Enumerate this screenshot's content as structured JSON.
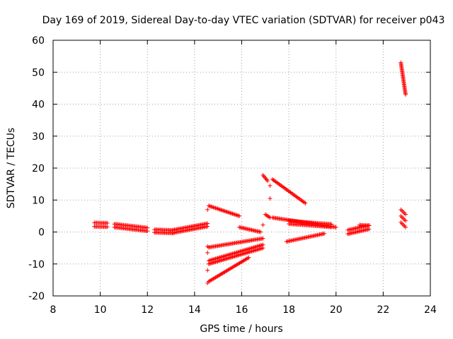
{
  "chart_data": {
    "type": "scatter",
    "title": "Day 169 of 2019, Sidereal Day-to-day VTEC variation (SDTVAR) for receiver p043",
    "xlabel": "GPS time / hours",
    "ylabel": "SDTVAR / TECUs",
    "xlim": [
      8,
      24
    ],
    "ylim": [
      -20,
      60
    ],
    "xticks": [
      8,
      10,
      12,
      14,
      16,
      18,
      20,
      22,
      24
    ],
    "yticks": [
      -20,
      -10,
      0,
      10,
      20,
      30,
      40,
      50,
      60
    ],
    "grid": true,
    "marker": "+",
    "color": "#ff0000",
    "segments": [
      {
        "x": [
          9.75,
          10.3
        ],
        "y": [
          2.3,
          2.2
        ],
        "band": 1.2
      },
      {
        "x": [
          10.6,
          12.0
        ],
        "y": [
          2.0,
          0.8
        ],
        "band": 1.0
      },
      {
        "x": [
          12.3,
          13.1
        ],
        "y": [
          0.3,
          0.1
        ],
        "band": 0.9
      },
      {
        "x": [
          13.1,
          14.55
        ],
        "y": [
          0.2,
          2.2
        ],
        "band": 0.9
      },
      {
        "x": [
          14.6,
          15.9
        ],
        "y": [
          8.2,
          5.0
        ],
        "band": 0.5
      },
      {
        "x": [
          14.6,
          16.9
        ],
        "y": [
          -4.8,
          -2.0
        ],
        "band": 0.8
      },
      {
        "x": [
          14.6,
          16.9
        ],
        "y": [
          -9.5,
          -4.5
        ],
        "band": 1.0
      },
      {
        "x": [
          14.6,
          16.3
        ],
        "y": [
          -15.5,
          -8.0
        ],
        "band": 0.8
      },
      {
        "x": [
          15.9,
          16.8
        ],
        "y": [
          1.5,
          0.0
        ],
        "band": 0.8
      },
      {
        "x": [
          17.3,
          18.7
        ],
        "y": [
          16.5,
          9.0
        ],
        "band": 0.4
      },
      {
        "x": [
          16.9,
          17.1
        ],
        "y": [
          17.8,
          16.0
        ],
        "band": 0.5
      },
      {
        "x": [
          17.0,
          17.2
        ],
        "y": [
          5.5,
          4.5
        ],
        "band": 0.4
      },
      {
        "x": [
          17.3,
          20.0
        ],
        "y": [
          4.5,
          1.5
        ],
        "band": 0.8
      },
      {
        "x": [
          18.0,
          19.8
        ],
        "y": [
          3.0,
          2.0
        ],
        "band": 0.9
      },
      {
        "x": [
          17.9,
          19.5
        ],
        "y": [
          -3.0,
          -0.5
        ],
        "band": 0.8
      },
      {
        "x": [
          20.5,
          21.4
        ],
        "y": [
          0.0,
          1.5
        ],
        "band": 1.2
      },
      {
        "x": [
          21.0,
          21.4
        ],
        "y": [
          2.2,
          2.0
        ],
        "band": 0.5
      },
      {
        "x": [
          22.75,
          22.95
        ],
        "y": [
          53.0,
          43.0
        ],
        "band": 0.3
      },
      {
        "x": [
          22.75,
          22.95
        ],
        "y": [
          7.0,
          5.5
        ],
        "band": 0.3
      },
      {
        "x": [
          22.75,
          22.95
        ],
        "y": [
          5.0,
          3.5
        ],
        "band": 0.3
      },
      {
        "x": [
          22.75,
          22.95
        ],
        "y": [
          3.0,
          1.5
        ],
        "band": 0.3
      }
    ],
    "points": [
      {
        "x": 14.55,
        "y": 7.0
      },
      {
        "x": 14.55,
        "y": -4.5
      },
      {
        "x": 14.55,
        "y": -6.5
      },
      {
        "x": 14.55,
        "y": -12.0
      },
      {
        "x": 14.55,
        "y": -16.0
      },
      {
        "x": 16.9,
        "y": 2.2
      },
      {
        "x": 17.2,
        "y": 10.5
      },
      {
        "x": 17.2,
        "y": 14.5
      }
    ]
  }
}
